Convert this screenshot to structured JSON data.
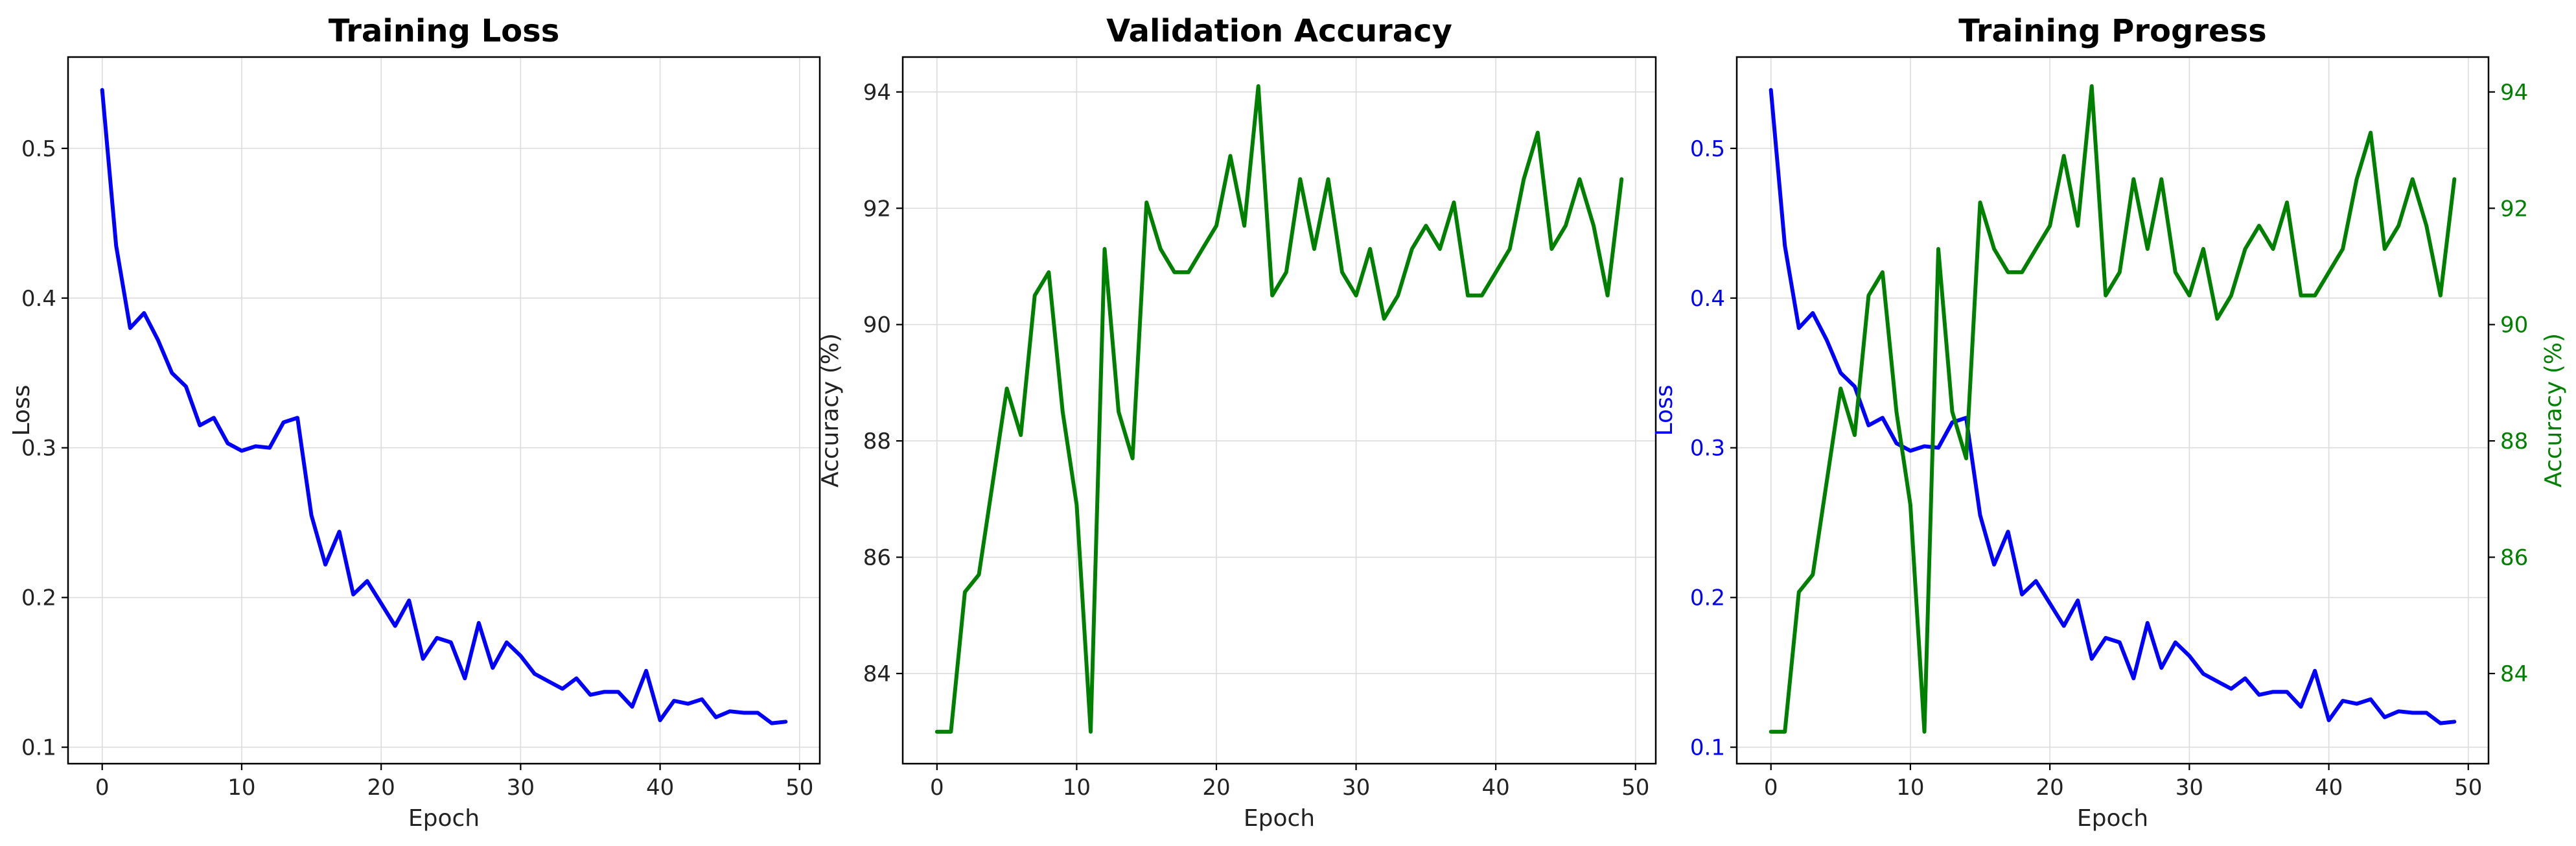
{
  "chart_data": [
    {
      "type": "line",
      "title": "Training Loss",
      "xlabel": "Epoch",
      "ylabel": "Loss",
      "xlim": [
        -2.45,
        51.45
      ],
      "ylim": [
        0.089,
        0.561
      ],
      "xticks": [
        0,
        10,
        20,
        30,
        40,
        50
      ],
      "yticks": [
        0.1,
        0.2,
        0.3,
        0.4,
        0.5
      ],
      "grid": true,
      "series": [
        {
          "color": "#0000ff",
          "axis": "left",
          "x": [
            0,
            1,
            2,
            3,
            4,
            5,
            6,
            7,
            8,
            9,
            10,
            11,
            12,
            13,
            14,
            15,
            16,
            17,
            18,
            19,
            20,
            21,
            22,
            23,
            24,
            25,
            26,
            27,
            28,
            29,
            30,
            31,
            32,
            33,
            34,
            35,
            36,
            37,
            38,
            39,
            40,
            41,
            42,
            43,
            44,
            45,
            46,
            47,
            48,
            49
          ],
          "values": [
            0.539,
            0.435,
            0.38,
            0.39,
            0.372,
            0.35,
            0.341,
            0.315,
            0.32,
            0.303,
            0.298,
            0.301,
            0.3,
            0.317,
            0.32,
            0.255,
            0.222,
            0.244,
            0.202,
            0.211,
            0.196,
            0.181,
            0.198,
            0.159,
            0.173,
            0.17,
            0.146,
            0.183,
            0.153,
            0.17,
            0.161,
            0.149,
            0.144,
            0.139,
            0.146,
            0.135,
            0.137,
            0.137,
            0.127,
            0.151,
            0.118,
            0.131,
            0.129,
            0.132,
            0.12,
            0.124,
            0.123,
            0.123,
            0.116,
            0.117
          ]
        }
      ]
    },
    {
      "type": "line",
      "title": "Validation Accuracy",
      "xlabel": "Epoch",
      "ylabel": "Accuracy (%)",
      "xlim": [
        -2.45,
        51.45
      ],
      "ylim": [
        82.45,
        94.6
      ],
      "xticks": [
        0,
        10,
        20,
        30,
        40,
        50
      ],
      "yticks": [
        84,
        86,
        88,
        90,
        92,
        94
      ],
      "grid": true,
      "series": [
        {
          "color": "#008000",
          "axis": "left",
          "x": [
            0,
            1,
            2,
            3,
            4,
            5,
            6,
            7,
            8,
            9,
            10,
            11,
            12,
            13,
            14,
            15,
            16,
            17,
            18,
            19,
            20,
            21,
            22,
            23,
            24,
            25,
            26,
            27,
            28,
            29,
            30,
            31,
            32,
            33,
            34,
            35,
            36,
            37,
            38,
            39,
            40,
            41,
            42,
            43,
            44,
            45,
            46,
            47,
            48,
            49
          ],
          "values": [
            83.0,
            83.0,
            85.4,
            85.7,
            87.3,
            88.9,
            88.1,
            90.5,
            90.9,
            88.5,
            86.9,
            83.0,
            91.3,
            88.5,
            87.7,
            92.1,
            91.3,
            90.9,
            90.9,
            91.3,
            91.7,
            92.9,
            91.7,
            94.1,
            90.5,
            90.9,
            92.5,
            91.3,
            92.5,
            90.9,
            90.5,
            91.3,
            90.1,
            90.5,
            91.3,
            91.7,
            91.3,
            92.1,
            90.5,
            90.5,
            90.9,
            91.3,
            92.5,
            93.3,
            91.3,
            91.7,
            92.5,
            91.7,
            90.5,
            92.5
          ]
        }
      ]
    },
    {
      "type": "line",
      "title": "Training Progress",
      "xlabel": "Epoch",
      "ylabel": "Loss",
      "ylabel_right": "Accuracy (%)",
      "xlim": [
        -2.45,
        51.45
      ],
      "ylim": [
        0.089,
        0.561
      ],
      "ylim_right": [
        82.45,
        94.6
      ],
      "xticks": [
        0,
        10,
        20,
        30,
        40,
        50
      ],
      "yticks": [
        0.1,
        0.2,
        0.3,
        0.4,
        0.5
      ],
      "yticks_right": [
        84,
        86,
        88,
        90,
        92,
        94
      ],
      "left_axis_color": "#0000ff",
      "right_axis_color": "#008000",
      "grid": true,
      "series": [
        {
          "color": "#0000ff",
          "axis": "left",
          "x": [
            0,
            1,
            2,
            3,
            4,
            5,
            6,
            7,
            8,
            9,
            10,
            11,
            12,
            13,
            14,
            15,
            16,
            17,
            18,
            19,
            20,
            21,
            22,
            23,
            24,
            25,
            26,
            27,
            28,
            29,
            30,
            31,
            32,
            33,
            34,
            35,
            36,
            37,
            38,
            39,
            40,
            41,
            42,
            43,
            44,
            45,
            46,
            47,
            48,
            49
          ],
          "values": [
            0.539,
            0.435,
            0.38,
            0.39,
            0.372,
            0.35,
            0.341,
            0.315,
            0.32,
            0.303,
            0.298,
            0.301,
            0.3,
            0.317,
            0.32,
            0.255,
            0.222,
            0.244,
            0.202,
            0.211,
            0.196,
            0.181,
            0.198,
            0.159,
            0.173,
            0.17,
            0.146,
            0.183,
            0.153,
            0.17,
            0.161,
            0.149,
            0.144,
            0.139,
            0.146,
            0.135,
            0.137,
            0.137,
            0.127,
            0.151,
            0.118,
            0.131,
            0.129,
            0.132,
            0.12,
            0.124,
            0.123,
            0.123,
            0.116,
            0.117
          ]
        },
        {
          "color": "#008000",
          "axis": "right",
          "x": [
            0,
            1,
            2,
            3,
            4,
            5,
            6,
            7,
            8,
            9,
            10,
            11,
            12,
            13,
            14,
            15,
            16,
            17,
            18,
            19,
            20,
            21,
            22,
            23,
            24,
            25,
            26,
            27,
            28,
            29,
            30,
            31,
            32,
            33,
            34,
            35,
            36,
            37,
            38,
            39,
            40,
            41,
            42,
            43,
            44,
            45,
            46,
            47,
            48,
            49
          ],
          "values": [
            83.0,
            83.0,
            85.4,
            85.7,
            87.3,
            88.9,
            88.1,
            90.5,
            90.9,
            88.5,
            86.9,
            83.0,
            91.3,
            88.5,
            87.7,
            92.1,
            91.3,
            90.9,
            90.9,
            91.3,
            91.7,
            92.9,
            91.7,
            94.1,
            90.5,
            90.9,
            92.5,
            91.3,
            92.5,
            90.9,
            90.5,
            91.3,
            90.1,
            90.5,
            91.3,
            91.7,
            91.3,
            92.1,
            90.5,
            90.5,
            90.9,
            91.3,
            92.5,
            93.3,
            91.3,
            91.7,
            92.5,
            91.7,
            90.5,
            92.5
          ]
        }
      ]
    }
  ]
}
